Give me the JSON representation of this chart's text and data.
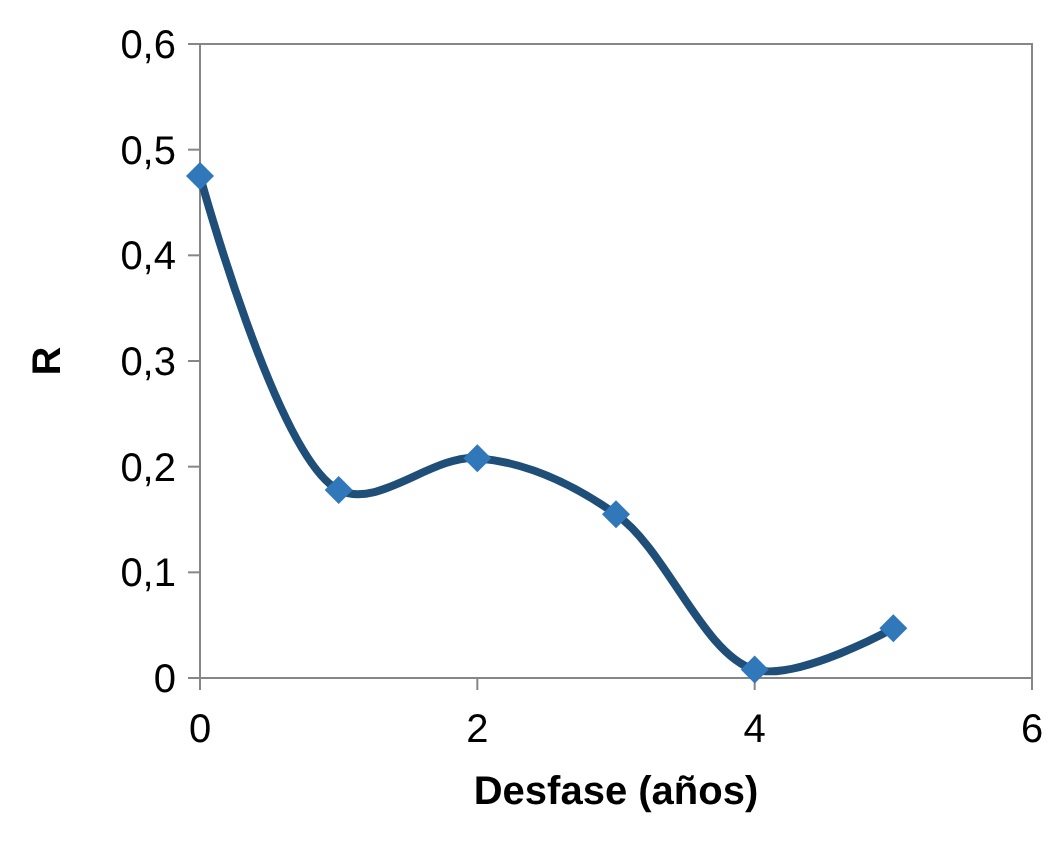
{
  "chart_data": {
    "type": "line",
    "xlabel": "Desfase (años)",
    "ylabel": "R",
    "x": [
      0,
      1,
      2,
      3,
      4,
      5
    ],
    "series": [
      {
        "color": "#1f4e79",
        "values": [
          0.475,
          0.178,
          0.208,
          0.155,
          0.008,
          0.047
        ]
      }
    ],
    "xlim": [
      0,
      6
    ],
    "xticks": [
      0,
      2,
      4,
      6
    ],
    "ylim": [
      0,
      0.6
    ],
    "yticks": [
      0,
      {
        "value": 0.1,
        "label": "0,1"
      },
      {
        "value": 0.2,
        "label": "0,2"
      },
      {
        "value": 0.3,
        "label": "0,3"
      },
      {
        "value": 0.4,
        "label": "0,4"
      },
      {
        "value": 0.5,
        "label": "0,5"
      },
      {
        "value": 0.6,
        "label": "0,6"
      }
    ],
    "marker": "diamond",
    "line_style": "solid",
    "grid": false
  }
}
